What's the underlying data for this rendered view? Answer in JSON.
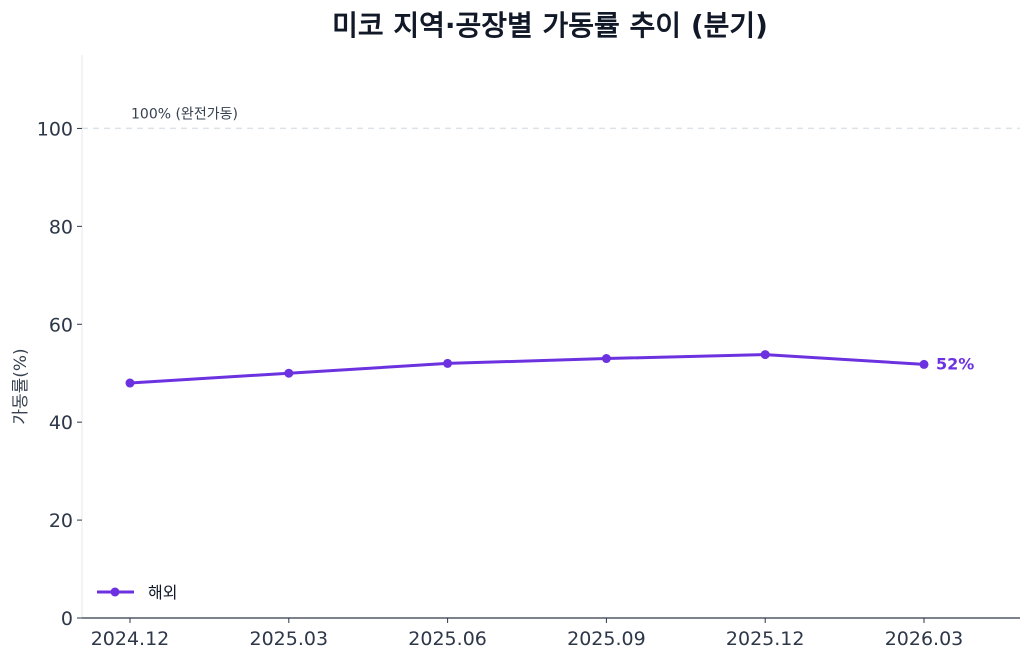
{
  "title": "미코 지역·공장별 가동률 추이 (분기)",
  "colors": {
    "series": "#6d32e0",
    "axis": "#2d3748",
    "reference": "#dde2e8"
  },
  "chart_data": {
    "type": "line",
    "title": "미코 지역·공장별 가동률 추이 (분기)",
    "xlabel": "",
    "ylabel": "가동률(%)",
    "categories": [
      "2024.12",
      "2025.03",
      "2025.06",
      "2025.09",
      "2025.12",
      "2026.03"
    ],
    "series": [
      {
        "name": "해외",
        "values": [
          48,
          50,
          52,
          53,
          53.8,
          51.8
        ]
      }
    ],
    "ylim": [
      0,
      115
    ],
    "yticks": [
      0,
      20,
      40,
      60,
      80,
      100
    ],
    "reference_line": {
      "value": 100,
      "label": "100% (완전가동)"
    },
    "end_label": "52%",
    "grid": false,
    "legend_position": "bottom-left"
  }
}
